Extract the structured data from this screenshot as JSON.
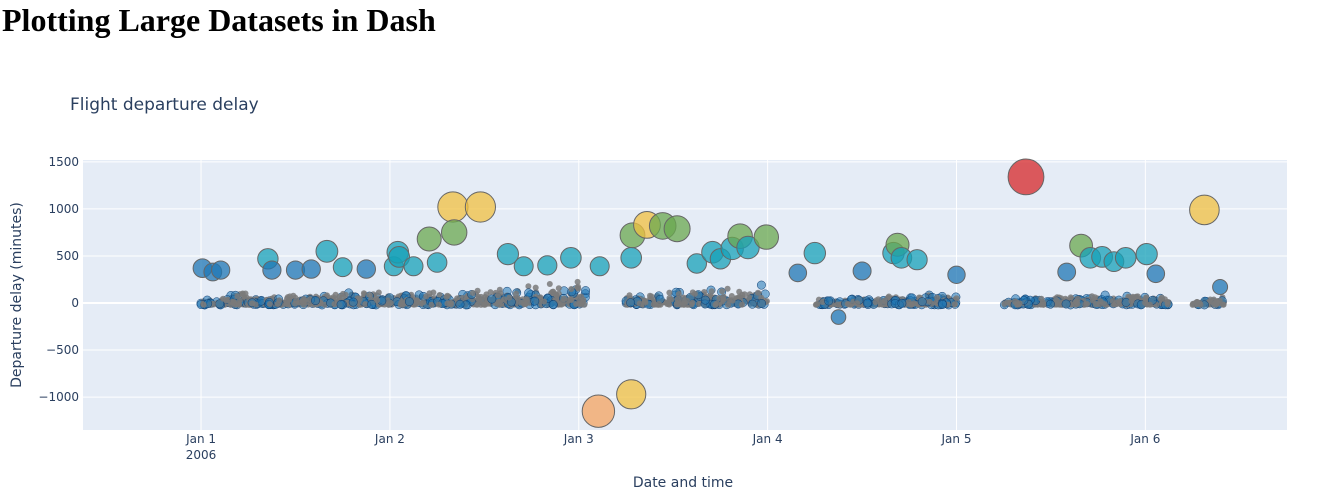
{
  "page": {
    "heading": "Plotting Large Datasets in Dash"
  },
  "chart_data": {
    "type": "scatter",
    "title": "Flight departure delay",
    "xlabel": "Date and time",
    "ylabel": "Departure delay (minutes)",
    "x_axis_type": "date",
    "xlim": [
      "2005-12-31 09:00",
      "2006-01-06 18:00"
    ],
    "ylim": [
      -1350,
      1520
    ],
    "xticks": [
      {
        "date": "2006-01-01 00:00",
        "label": "Jan 1",
        "sublabel": "2006"
      },
      {
        "date": "2006-01-02 00:00",
        "label": "Jan 2",
        "sublabel": ""
      },
      {
        "date": "2006-01-03 00:00",
        "label": "Jan 3",
        "sublabel": ""
      },
      {
        "date": "2006-01-04 00:00",
        "label": "Jan 4",
        "sublabel": ""
      },
      {
        "date": "2006-01-05 00:00",
        "label": "Jan 5",
        "sublabel": ""
      },
      {
        "date": "2006-01-06 00:00",
        "label": "Jan 6",
        "sublabel": ""
      }
    ],
    "yticks": [
      {
        "value": 1500,
        "label": "1500"
      },
      {
        "value": 1000,
        "label": "1000"
      },
      {
        "value": 500,
        "label": "500"
      },
      {
        "value": 0,
        "label": "0"
      },
      {
        "value": -500,
        "label": "−500"
      },
      {
        "value": -1000,
        "label": "−1000"
      }
    ],
    "grid": true,
    "marker_size_encodes": "absolute delay",
    "marker_color_encodes": "delay",
    "colorscale": [
      "#0d3b6e",
      "#1f77b4",
      "#17a2b8",
      "#6aa84f",
      "#f0c040",
      "#f4a460",
      "#d62728"
    ],
    "colors": {
      "plot_bg": "#e5ecf6",
      "dense_points": "#7a7a7a",
      "zero_line": "#ffffff",
      "text": "#2a3f5f"
    },
    "dense_bands": [
      {
        "start": "2006-01-01 00:00",
        "end": "2006-01-01 06:00",
        "peak": 130
      },
      {
        "start": "2006-01-01 06:00",
        "end": "2006-01-02 06:00",
        "peak": 160
      },
      {
        "start": "2006-01-02 06:00",
        "end": "2006-01-03 01:00",
        "peak": 250
      },
      {
        "start": "2006-01-03 06:00",
        "end": "2006-01-04 00:00",
        "peak": 220
      },
      {
        "start": "2006-01-04 06:00",
        "end": "2006-01-05 00:00",
        "peak": 110
      },
      {
        "start": "2006-01-05 06:00",
        "end": "2006-01-06 03:00",
        "peak": 130
      },
      {
        "start": "2006-01-06 06:00",
        "end": "2006-01-06 10:00",
        "peak": 70
      }
    ],
    "points": [
      {
        "date": "2006-01-01 00:10",
        "y": 370
      },
      {
        "date": "2006-01-01 01:30",
        "y": 330
      },
      {
        "date": "2006-01-01 02:30",
        "y": 350
      },
      {
        "date": "2006-01-01 08:30",
        "y": 470
      },
      {
        "date": "2006-01-01 09:00",
        "y": 350
      },
      {
        "date": "2006-01-01 12:00",
        "y": 350
      },
      {
        "date": "2006-01-01 14:00",
        "y": 360
      },
      {
        "date": "2006-01-01 16:00",
        "y": 550
      },
      {
        "date": "2006-01-01 18:00",
        "y": 380
      },
      {
        "date": "2006-01-01 21:00",
        "y": 360
      },
      {
        "date": "2006-01-02 00:30",
        "y": 390
      },
      {
        "date": "2006-01-02 01:00",
        "y": 540
      },
      {
        "date": "2006-01-02 01:10",
        "y": 490
      },
      {
        "date": "2006-01-02 03:00",
        "y": 390
      },
      {
        "date": "2006-01-02 05:00",
        "y": 680
      },
      {
        "date": "2006-01-02 06:00",
        "y": 430
      },
      {
        "date": "2006-01-02 08:00",
        "y": 1020
      },
      {
        "date": "2006-01-02 08:10",
        "y": 750
      },
      {
        "date": "2006-01-02 11:30",
        "y": 1020
      },
      {
        "date": "2006-01-02 15:00",
        "y": 520
      },
      {
        "date": "2006-01-02 17:00",
        "y": 390
      },
      {
        "date": "2006-01-02 20:00",
        "y": 400
      },
      {
        "date": "2006-01-02 23:00",
        "y": 480
      },
      {
        "date": "2006-01-03 02:40",
        "y": 390
      },
      {
        "date": "2006-01-03 02:30",
        "y": -1150
      },
      {
        "date": "2006-01-03 06:40",
        "y": -970
      },
      {
        "date": "2006-01-03 06:50",
        "y": 720
      },
      {
        "date": "2006-01-03 06:40",
        "y": 480
      },
      {
        "date": "2006-01-03 08:40",
        "y": 830
      },
      {
        "date": "2006-01-03 10:40",
        "y": 820
      },
      {
        "date": "2006-01-03 12:30",
        "y": 790
      },
      {
        "date": "2006-01-03 15:00",
        "y": 420
      },
      {
        "date": "2006-01-03 17:00",
        "y": 540
      },
      {
        "date": "2006-01-03 18:00",
        "y": 470
      },
      {
        "date": "2006-01-03 19:30",
        "y": 580
      },
      {
        "date": "2006-01-03 20:30",
        "y": 710
      },
      {
        "date": "2006-01-03 21:30",
        "y": 590
      },
      {
        "date": "2006-01-03 23:50",
        "y": 700
      },
      {
        "date": "2006-01-04 03:50",
        "y": 320
      },
      {
        "date": "2006-01-04 06:00",
        "y": 530
      },
      {
        "date": "2006-01-04 12:00",
        "y": 340
      },
      {
        "date": "2006-01-04 16:00",
        "y": 530
      },
      {
        "date": "2006-01-04 16:30",
        "y": 620
      },
      {
        "date": "2006-01-04 17:00",
        "y": 480
      },
      {
        "date": "2006-01-04 19:00",
        "y": 460
      },
      {
        "date": "2006-01-05 00:00",
        "y": 300
      },
      {
        "date": "2006-01-05 08:50",
        "y": 1340
      },
      {
        "date": "2006-01-05 14:00",
        "y": 330
      },
      {
        "date": "2006-01-05 15:50",
        "y": 610
      },
      {
        "date": "2006-01-05 17:00",
        "y": 480
      },
      {
        "date": "2006-01-05 18:30",
        "y": 490
      },
      {
        "date": "2006-01-05 20:00",
        "y": 440
      },
      {
        "date": "2006-01-05 21:30",
        "y": 480
      },
      {
        "date": "2006-01-06 00:10",
        "y": 520
      },
      {
        "date": "2006-01-06 01:20",
        "y": 310
      },
      {
        "date": "2006-01-06 07:30",
        "y": 990
      },
      {
        "date": "2006-01-06 09:30",
        "y": 170
      },
      {
        "date": "2006-01-04 09:00",
        "y": -150
      }
    ]
  }
}
